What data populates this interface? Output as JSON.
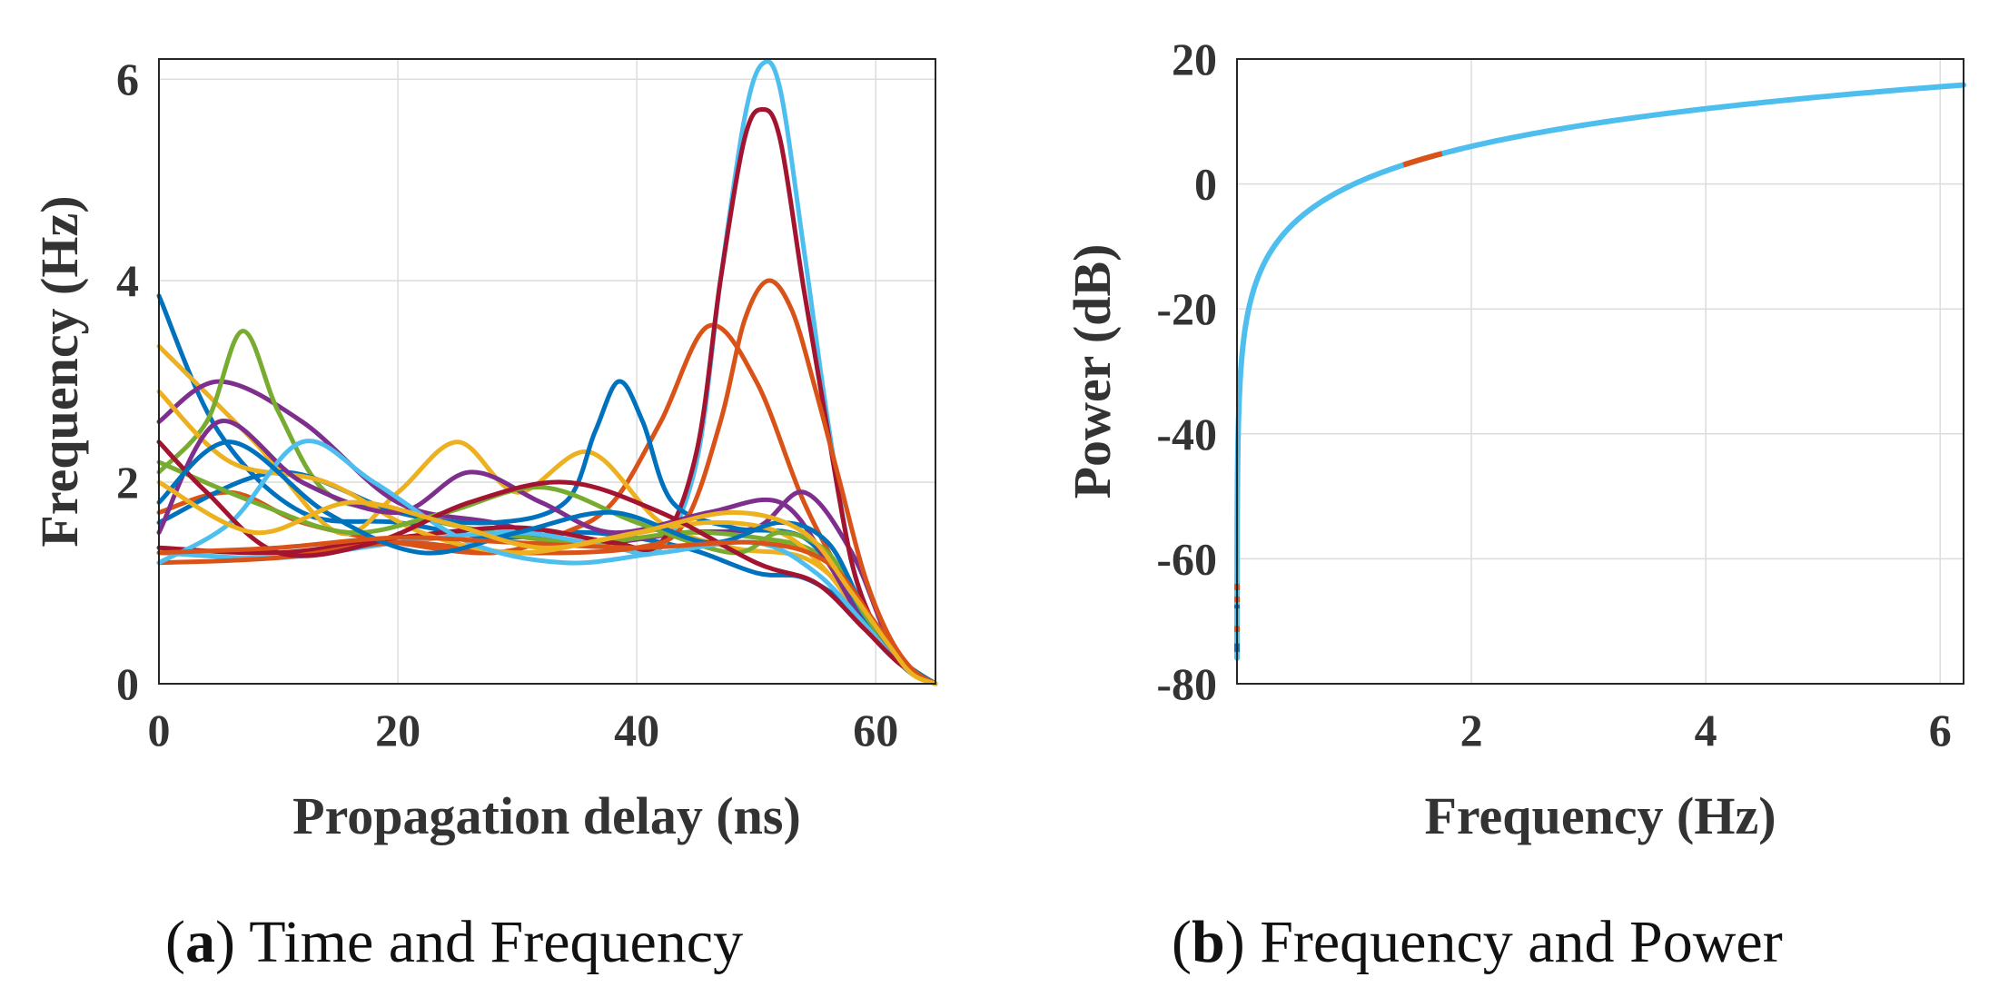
{
  "captions": {
    "a": {
      "letter": "a",
      "text": " Time and Frequency"
    },
    "b": {
      "letter": "b",
      "text": " Frequency and Power"
    }
  },
  "chart_data": [
    {
      "type": "line",
      "xlabel": "Propagation delay (ns)",
      "ylabel": "Frequency (Hz)",
      "xlim": [
        0,
        65
      ],
      "ylim": [
        0,
        6.2
      ],
      "xticks": [
        0,
        20,
        40,
        60
      ],
      "yticks": [
        0,
        2,
        4,
        6
      ],
      "grid": true,
      "series_colors": [
        "#0072BD",
        "#D95319",
        "#EDB120",
        "#7E2F8E",
        "#77AC30",
        "#4DBEEE",
        "#A2142F"
      ],
      "series": [
        {
          "x": [
            0,
            5,
            12,
            20,
            28,
            36,
            44,
            50,
            54,
            58,
            61,
            63,
            65
          ],
          "y": [
            3.85,
            2.5,
            1.7,
            1.6,
            1.45,
            1.5,
            1.35,
            1.1,
            1.05,
            0.75,
            0.35,
            0.12,
            0
          ]
        },
        {
          "x": [
            0,
            6,
            12,
            20,
            28,
            34,
            38,
            42,
            46,
            50,
            54,
            58,
            61,
            63,
            65
          ],
          "y": [
            1.7,
            1.9,
            1.6,
            1.4,
            1.3,
            1.5,
            1.8,
            2.6,
            3.55,
            3.0,
            1.8,
            0.9,
            0.35,
            0.1,
            0
          ]
        },
        {
          "x": [
            0,
            8,
            15,
            20,
            25,
            30,
            36,
            42,
            48,
            54,
            58,
            61,
            63,
            65
          ],
          "y": [
            3.35,
            2.4,
            1.5,
            1.9,
            2.4,
            1.9,
            2.3,
            1.6,
            1.35,
            1.25,
            0.85,
            0.35,
            0.1,
            0
          ]
        },
        {
          "x": [
            0,
            5,
            12,
            20,
            28,
            36,
            44,
            50,
            54,
            58,
            61,
            63,
            65
          ],
          "y": [
            2.6,
            3.0,
            2.6,
            1.8,
            1.6,
            1.4,
            1.5,
            1.55,
            1.9,
            1.3,
            0.45,
            0.12,
            0
          ]
        },
        {
          "x": [
            0,
            4,
            7,
            10,
            14,
            20,
            28,
            36,
            44,
            50,
            55,
            59,
            62,
            65
          ],
          "y": [
            2.1,
            2.6,
            3.5,
            2.7,
            1.9,
            1.7,
            1.5,
            1.4,
            1.5,
            1.45,
            1.3,
            0.75,
            0.25,
            0
          ]
        },
        {
          "x": [
            0,
            10,
            20,
            30,
            38,
            42,
            45,
            47,
            49,
            50.5,
            52,
            54,
            56,
            58,
            60,
            62,
            65
          ],
          "y": [
            1.3,
            1.25,
            1.4,
            1.5,
            1.35,
            1.35,
            2.2,
            4.0,
            5.6,
            6.15,
            5.9,
            4.3,
            2.6,
            1.2,
            0.55,
            0.2,
            0
          ]
        },
        {
          "x": [
            0,
            10,
            20,
            30,
            38,
            42,
            45,
            47,
            49,
            50.5,
            52,
            54,
            56,
            58,
            60,
            62,
            65
          ],
          "y": [
            1.35,
            1.3,
            1.45,
            1.55,
            1.4,
            1.4,
            2.3,
            4.0,
            5.4,
            5.7,
            5.4,
            3.9,
            2.5,
            1.2,
            0.55,
            0.2,
            0
          ]
        },
        {
          "x": [
            0,
            10,
            20,
            28,
            34,
            36.5,
            38.5,
            40.5,
            43,
            48,
            54,
            58,
            61,
            63,
            65
          ],
          "y": [
            1.6,
            2.1,
            1.7,
            1.6,
            1.8,
            2.5,
            3.0,
            2.6,
            1.8,
            1.55,
            1.45,
            0.85,
            0.35,
            0.1,
            0
          ]
        },
        {
          "x": [
            0,
            10,
            20,
            30,
            40,
            44,
            47,
            49,
            51,
            53,
            55,
            57,
            59,
            61,
            63,
            65
          ],
          "y": [
            1.2,
            1.25,
            1.4,
            1.3,
            1.35,
            1.6,
            2.6,
            3.6,
            4.0,
            3.7,
            2.9,
            2.0,
            1.1,
            0.5,
            0.15,
            0
          ]
        },
        {
          "x": [
            0,
            6,
            14,
            22,
            30,
            38,
            46,
            52,
            56,
            59,
            62,
            65
          ],
          "y": [
            2.9,
            2.2,
            2.0,
            1.5,
            1.3,
            1.45,
            1.6,
            1.5,
            1.1,
            0.6,
            0.2,
            0
          ]
        },
        {
          "x": [
            0,
            5,
            12,
            20,
            26,
            32,
            38,
            46,
            52,
            56,
            59,
            62,
            65
          ],
          "y": [
            1.5,
            2.6,
            2.0,
            1.7,
            2.1,
            1.8,
            1.5,
            1.7,
            1.8,
            1.2,
            0.6,
            0.2,
            0
          ]
        },
        {
          "x": [
            0,
            8,
            16,
            24,
            32,
            40,
            48,
            52,
            56,
            59,
            62,
            65
          ],
          "y": [
            2.2,
            1.8,
            1.5,
            1.7,
            1.95,
            1.6,
            1.3,
            1.5,
            1.3,
            0.7,
            0.25,
            0
          ]
        },
        {
          "x": [
            0,
            6,
            12,
            18,
            26,
            34,
            42,
            50,
            55,
            59,
            62,
            65
          ],
          "y": [
            1.2,
            1.6,
            2.4,
            2.0,
            1.4,
            1.2,
            1.3,
            1.4,
            1.1,
            0.6,
            0.2,
            0
          ]
        },
        {
          "x": [
            0,
            4,
            10,
            18,
            26,
            34,
            42,
            50,
            55,
            59,
            62,
            65
          ],
          "y": [
            2.4,
            1.9,
            1.3,
            1.4,
            1.8,
            2.0,
            1.7,
            1.2,
            1.0,
            0.55,
            0.2,
            0
          ]
        },
        {
          "x": [
            0,
            6,
            14,
            22,
            30,
            38,
            46,
            52,
            56,
            59,
            62,
            65
          ],
          "y": [
            1.8,
            2.4,
            1.7,
            1.3,
            1.5,
            1.7,
            1.4,
            1.6,
            1.4,
            0.75,
            0.25,
            0
          ]
        },
        {
          "x": [
            0,
            10,
            20,
            30,
            40,
            50,
            56,
            60,
            63,
            65
          ],
          "y": [
            1.3,
            1.35,
            1.45,
            1.4,
            1.35,
            1.4,
            1.2,
            0.6,
            0.15,
            0
          ]
        },
        {
          "x": [
            0,
            8,
            16,
            24,
            32,
            40,
            48,
            54,
            58,
            61,
            63,
            65
          ],
          "y": [
            2.0,
            1.5,
            1.8,
            1.6,
            1.35,
            1.5,
            1.7,
            1.5,
            0.9,
            0.4,
            0.1,
            0
          ]
        }
      ]
    },
    {
      "type": "line",
      "xlabel": "Frequency (Hz)",
      "ylabel": "Power (dB)",
      "xlim": [
        0,
        6.2
      ],
      "ylim": [
        -80,
        20
      ],
      "xticks": [
        2,
        4,
        6
      ],
      "yticks": [
        -80,
        -60,
        -40,
        -20,
        0,
        20
      ],
      "grid": true,
      "curve_formula": "power_dB = 20*log10(frequency_Hz)",
      "x_range": [
        0.00016,
        6.2
      ],
      "line_color": "#4DBEEE",
      "highlight_segments": [
        {
          "color": "#D95319",
          "x_from": 1.42,
          "x_to": 1.75
        },
        {
          "color": "#D95319",
          "x_from": 0.00056,
          "x_to": 0.00063
        },
        {
          "color": "#D95319",
          "x_from": 0.00045,
          "x_to": 0.0005
        },
        {
          "color": "#0072BD",
          "x_from": 0.0004,
          "x_to": 0.00043
        },
        {
          "color": "#D95319",
          "x_from": 0.00026,
          "x_to": 0.00029
        },
        {
          "color": "#0072BD",
          "x_from": 0.00018,
          "x_to": 0.00021
        }
      ]
    }
  ]
}
